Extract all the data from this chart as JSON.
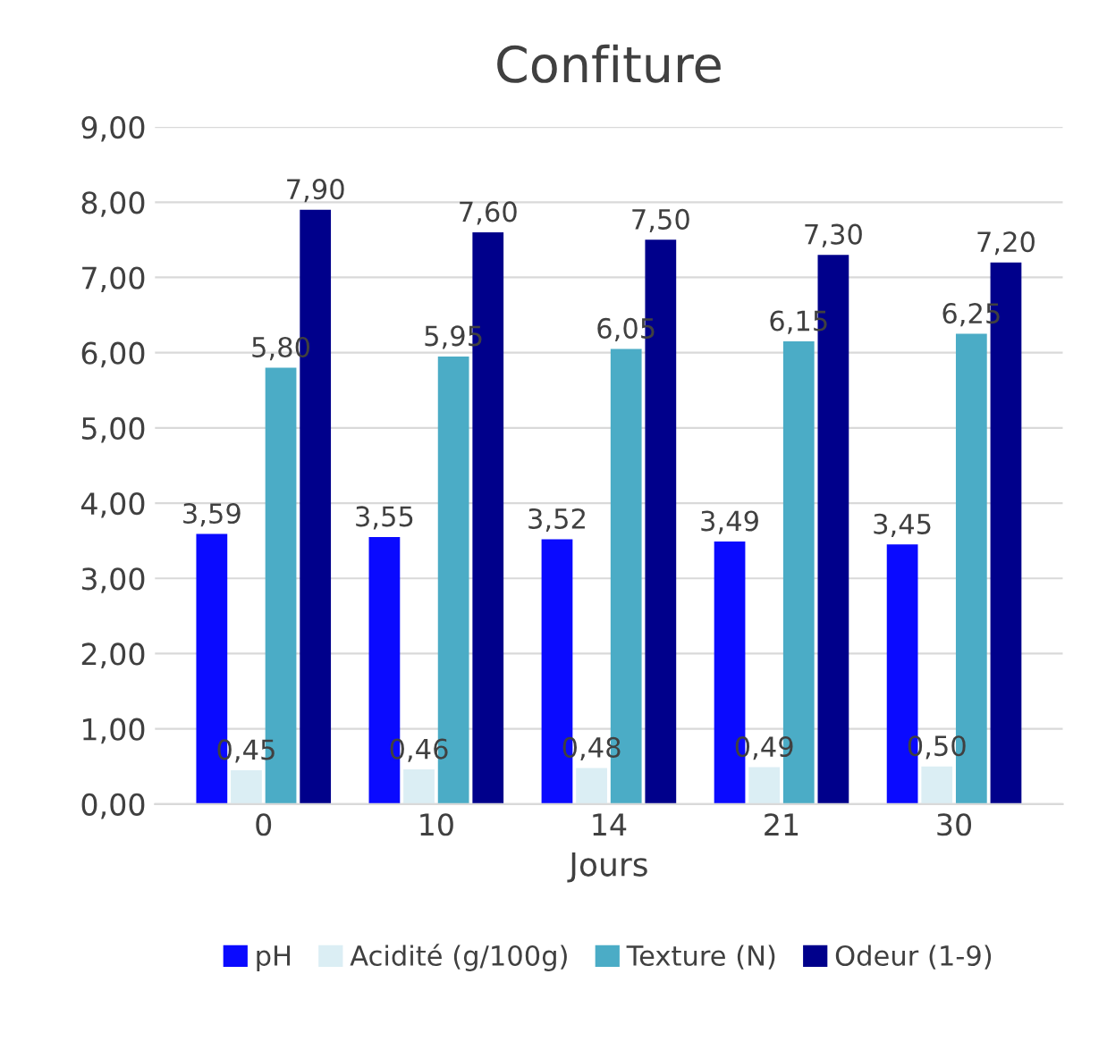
{
  "chart_data": {
    "type": "bar",
    "title": "Confiture",
    "xlabel": "Jours",
    "categories": [
      "0",
      "10",
      "14",
      "21",
      "30"
    ],
    "series": [
      {
        "name": "pH",
        "color": "#0a0aff",
        "values": [
          3.59,
          3.55,
          3.52,
          3.49,
          3.45
        ],
        "value_labels": [
          "3,59",
          "3,55",
          "3,52",
          "3,49",
          "3,45"
        ]
      },
      {
        "name": "Acidité (g/100g)",
        "color": "#dbeef4",
        "values": [
          0.45,
          0.46,
          0.48,
          0.49,
          0.5
        ],
        "value_labels": [
          "0,45",
          "0,46",
          "0,48",
          "0,49",
          "0,50"
        ]
      },
      {
        "name": "Texture (N)",
        "color": "#4bacc6",
        "values": [
          5.8,
          5.95,
          6.05,
          6.15,
          6.25
        ],
        "value_labels": [
          "5,80",
          "5,95",
          "6,05",
          "6,15",
          "6,25"
        ]
      },
      {
        "name": "Odeur (1-9)",
        "color": "#00008b",
        "values": [
          7.9,
          7.6,
          7.5,
          7.3,
          7.2
        ],
        "value_labels": [
          "7,90",
          "7,60",
          "7,50",
          "7,30",
          "7,20"
        ]
      }
    ],
    "ylim": [
      0,
      9
    ],
    "yticks": [
      {
        "value": 0,
        "label": "0,00"
      },
      {
        "value": 1,
        "label": "1,00"
      },
      {
        "value": 2,
        "label": "2,00"
      },
      {
        "value": 3,
        "label": "3,00"
      },
      {
        "value": 4,
        "label": "4,00"
      },
      {
        "value": 5,
        "label": "5,00"
      },
      {
        "value": 6,
        "label": "6,00"
      },
      {
        "value": 7,
        "label": "7,00"
      },
      {
        "value": 8,
        "label": "8,00"
      },
      {
        "value": 9,
        "label": "9,00"
      }
    ],
    "grid": "y",
    "legend": "bottom"
  }
}
